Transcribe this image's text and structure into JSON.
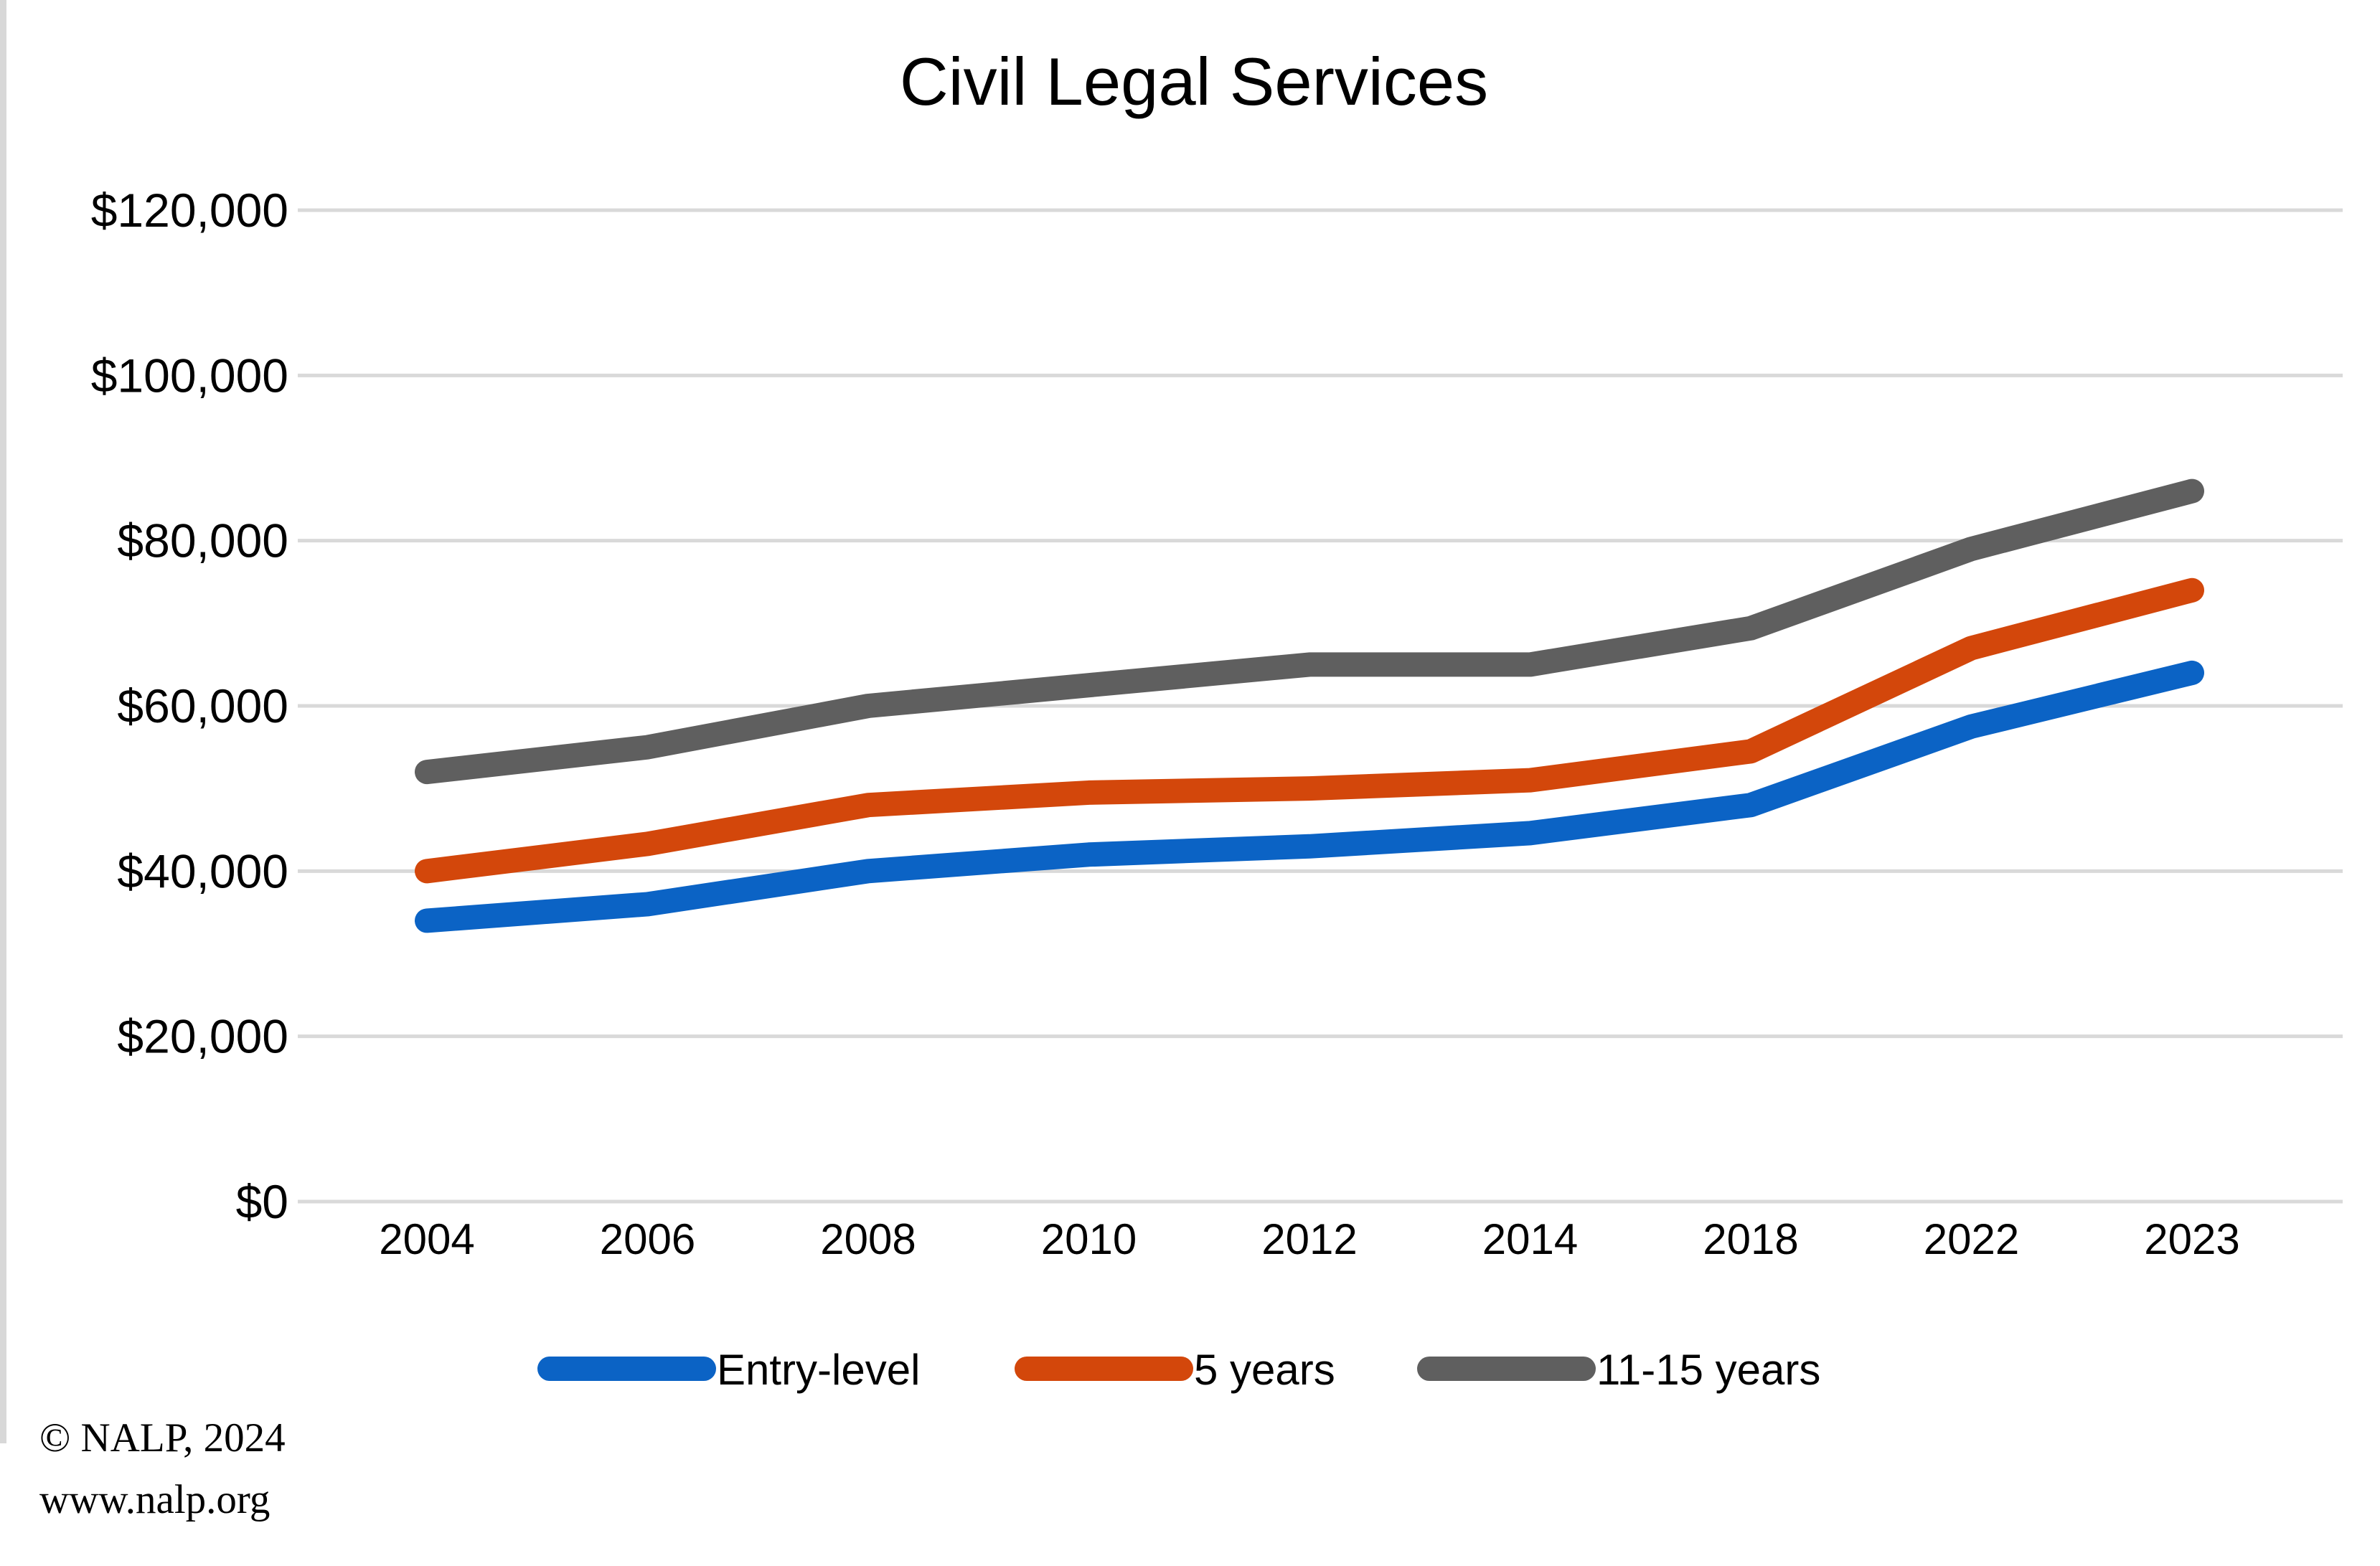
{
  "chart_data": {
    "type": "line",
    "title": "Civil Legal Services",
    "categories": [
      "2004",
      "2006",
      "2008",
      "2010",
      "2012",
      "2014",
      "2018",
      "2022",
      "2023"
    ],
    "series": [
      {
        "name": "Entry-level",
        "color": "#0B63C5",
        "values": [
          34000,
          36000,
          40000,
          42000,
          43000,
          44600,
          48000,
          57500,
          64000
        ]
      },
      {
        "name": "5 years",
        "color": "#D3470B",
        "values": [
          40000,
          43300,
          48000,
          49500,
          50000,
          51000,
          54500,
          67000,
          74000
        ]
      },
      {
        "name": "11-15 years",
        "color": "#5F5F5F",
        "values": [
          52000,
          55000,
          60000,
          62500,
          65000,
          65000,
          69400,
          79000,
          86000
        ]
      }
    ],
    "ylim": [
      0,
      120000
    ],
    "y_tick_step": 20000,
    "y_tick_labels": [
      "$0",
      "$20,000",
      "$40,000",
      "$60,000",
      "$80,000",
      "$100,000",
      "$120,000"
    ],
    "xlabel": "",
    "ylabel": "",
    "grid": "horizontal",
    "gridline_color": "#D9D9D9",
    "text_color": "#000000",
    "legend_position": "bottom"
  },
  "footer": {
    "line1": "© NALP, 2024",
    "line2": "www.nalp.org"
  }
}
